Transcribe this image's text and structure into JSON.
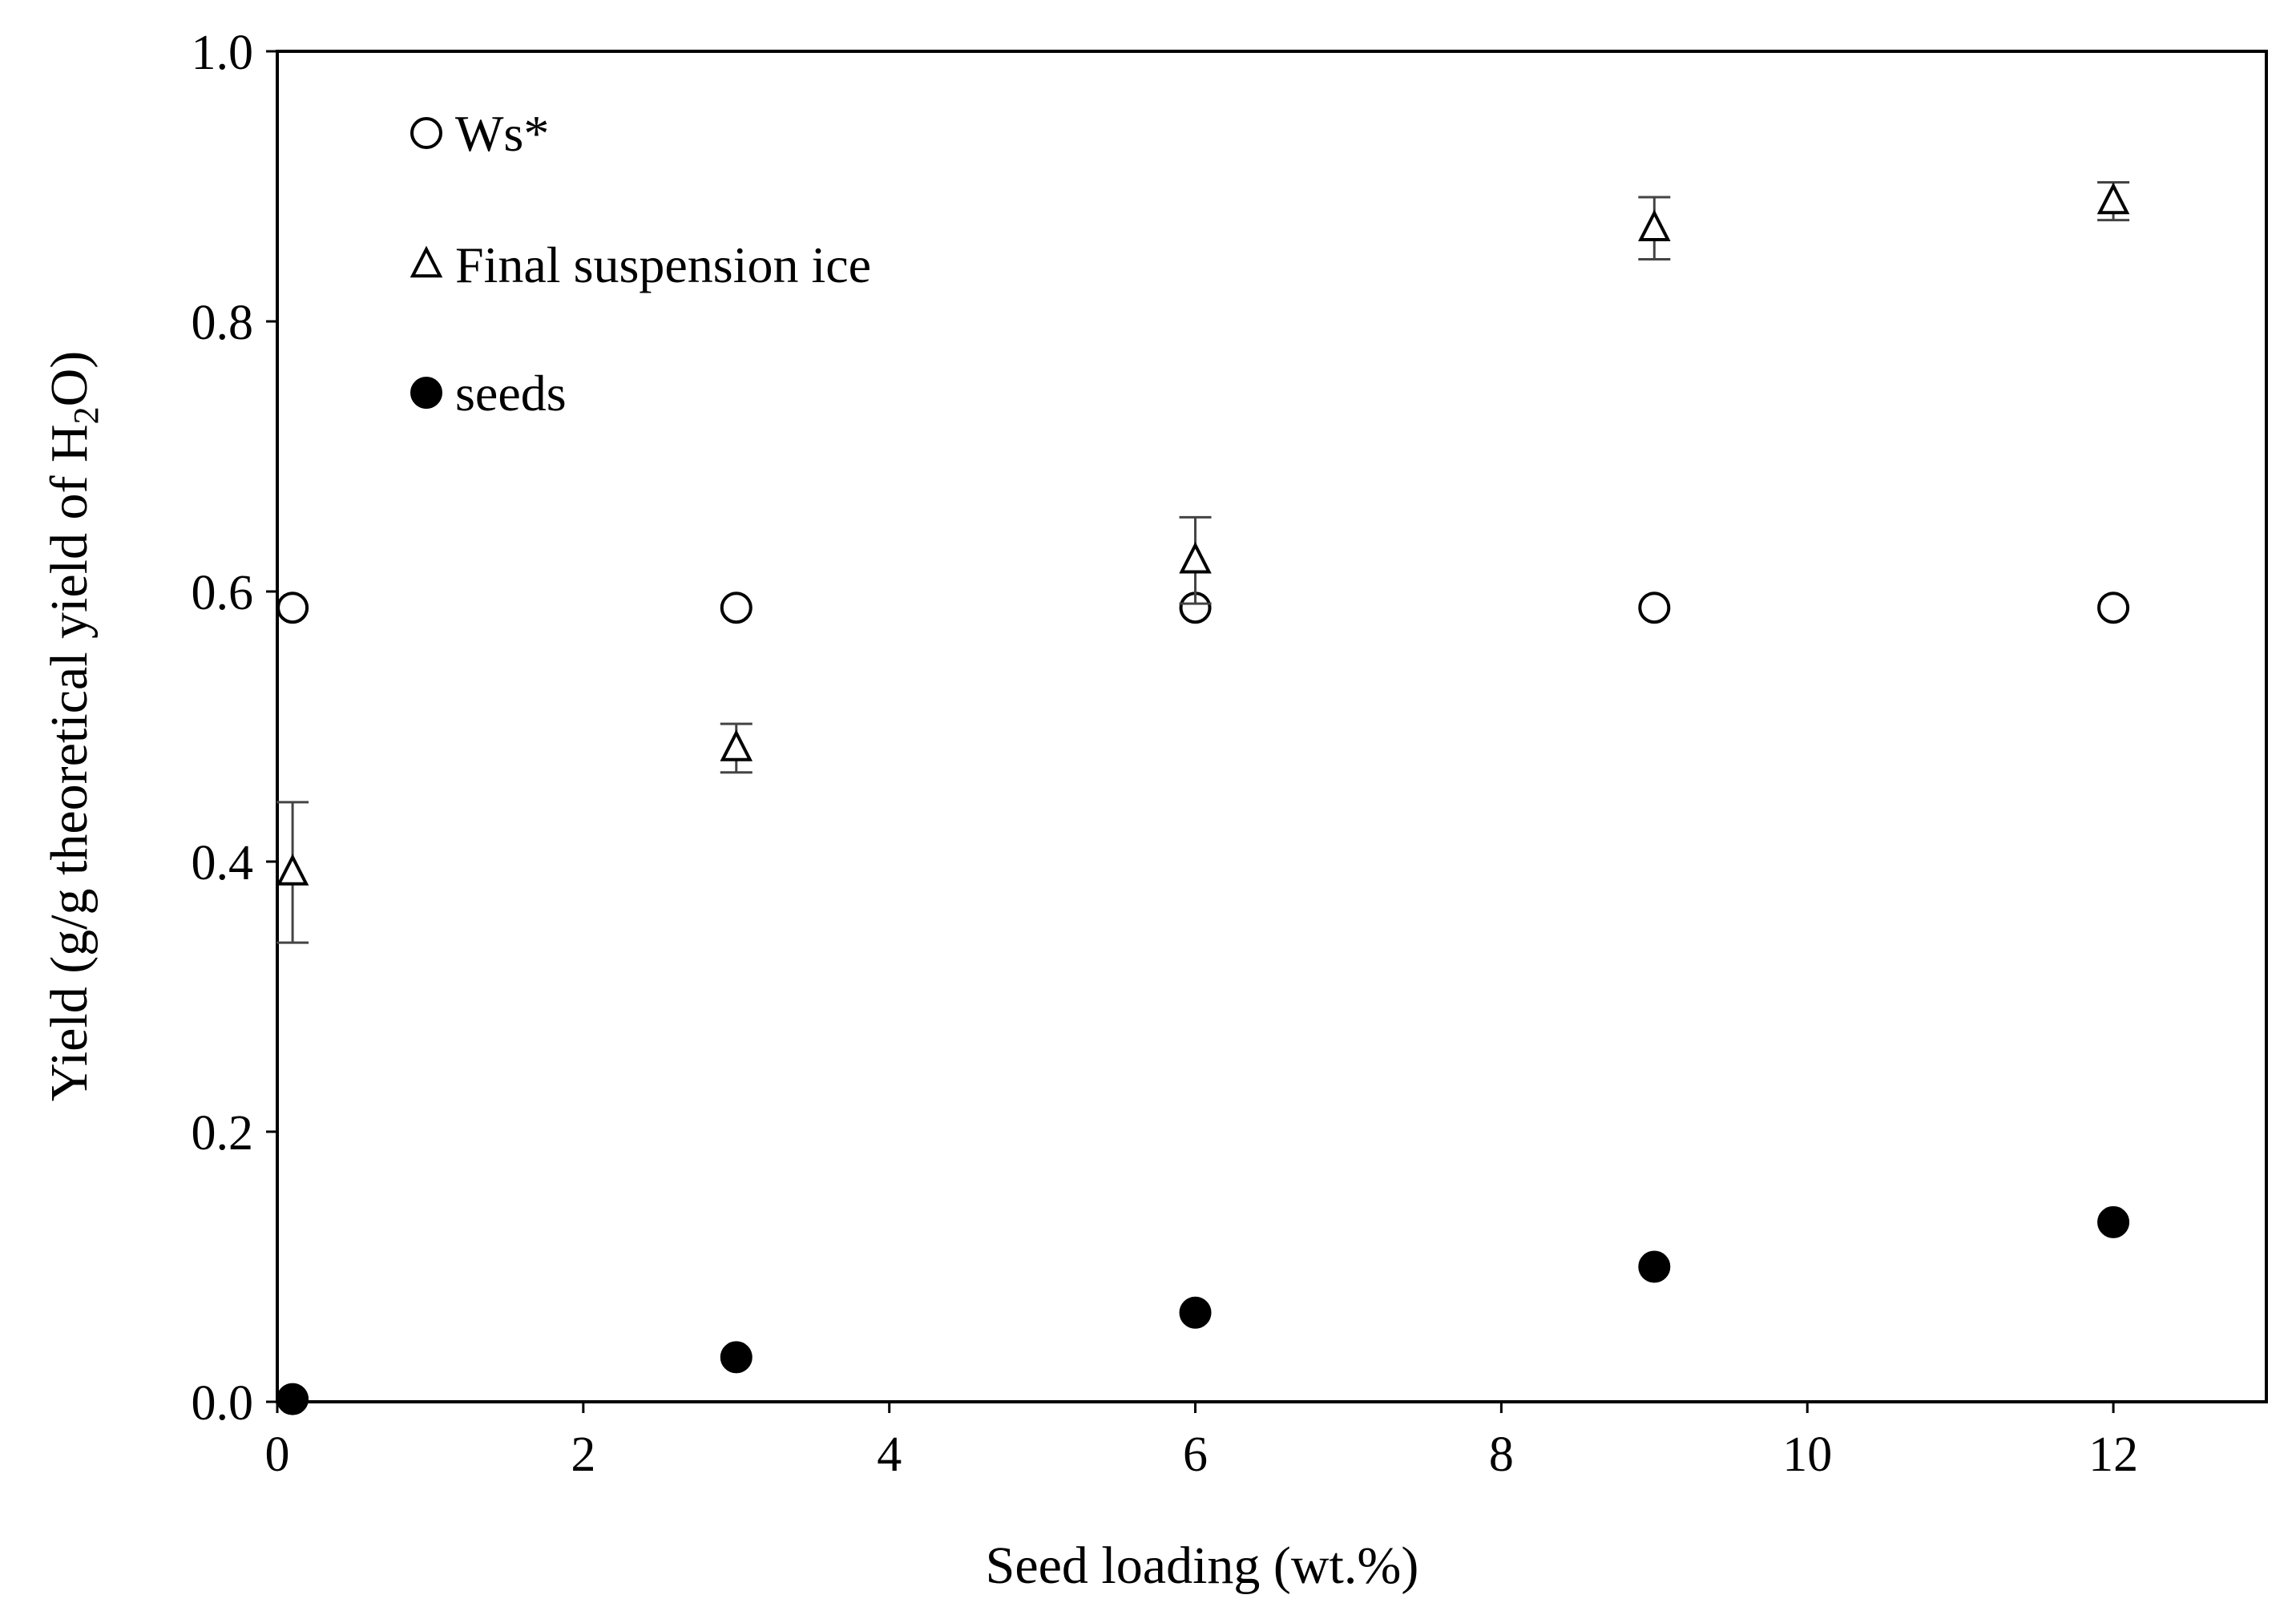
{
  "chart_data": {
    "type": "scatter",
    "xlabel": "Seed loading (wt.%)",
    "ylabel": {
      "prefix": "Yield (g/g theoretical yield of H",
      "subscript": "2",
      "suffix": "O)"
    },
    "xlim": [
      0,
      13
    ],
    "ylim": [
      0,
      1.0
    ],
    "x_ticks": [
      0,
      2,
      4,
      6,
      8,
      10,
      12
    ],
    "y_ticks": [
      0.0,
      0.2,
      0.4,
      0.6,
      0.8,
      1.0
    ],
    "x_tick_labels": [
      "0",
      "2",
      "4",
      "6",
      "8",
      "10",
      "12"
    ],
    "y_tick_labels": [
      "0.0",
      "0.2",
      "0.4",
      "0.6",
      "0.8",
      "1.0"
    ],
    "grid": false,
    "legend_position": "top-left",
    "series": [
      {
        "name": "Ws*",
        "marker": "open-circle",
        "color": "#000000",
        "x": [
          0.1,
          3,
          6,
          9,
          12
        ],
        "y": [
          0.588,
          0.588,
          0.588,
          0.588,
          0.588
        ]
      },
      {
        "name": "Final suspension ice",
        "marker": "open-triangle",
        "color": "#000000",
        "x": [
          0.1,
          3,
          6,
          9,
          12
        ],
        "y": [
          0.392,
          0.484,
          0.623,
          0.869,
          0.889
        ],
        "error": [
          0.052,
          0.018,
          0.032,
          0.023,
          0.014
        ]
      },
      {
        "name": "seeds",
        "marker": "filled-circle",
        "color": "#000000",
        "x": [
          0.1,
          3,
          6,
          9,
          12
        ],
        "y": [
          0.002,
          0.033,
          0.066,
          0.1,
          0.133
        ]
      }
    ]
  }
}
